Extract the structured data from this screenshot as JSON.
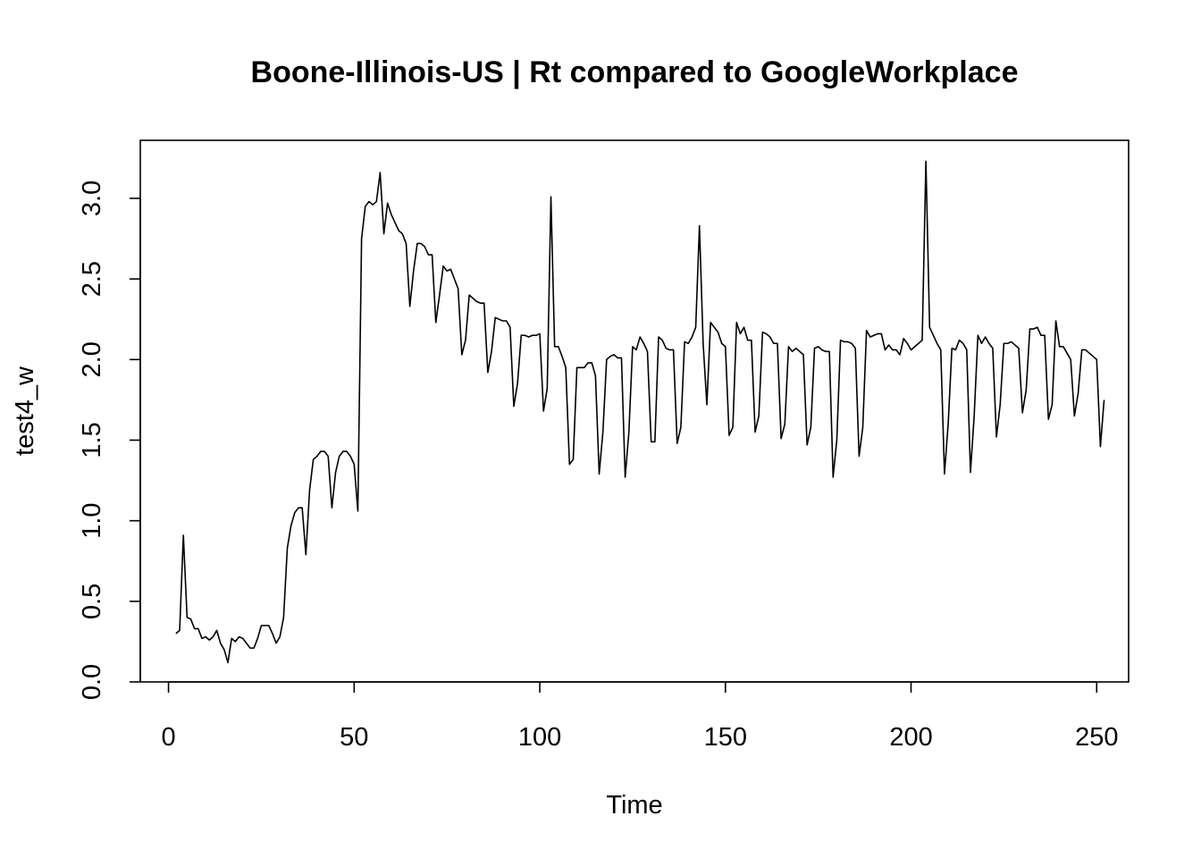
{
  "chart_data": {
    "type": "line",
    "title": "Boone-Illinois-US | Rt compared to GoogleWorkplace",
    "xlabel": "Time",
    "ylabel": "test4_w",
    "xlim": [
      -7.6,
      258.6
    ],
    "ylim": [
      0.0,
      3.36
    ],
    "x_ticks": [
      0,
      50,
      100,
      150,
      200,
      250
    ],
    "y_ticks": [
      0.0,
      0.5,
      1.0,
      1.5,
      2.0,
      2.5,
      3.0
    ],
    "x_tick_labels": [
      "0",
      "50",
      "100",
      "150",
      "200",
      "250"
    ],
    "y_tick_labels": [
      "0.0",
      "0.5",
      "1.0",
      "1.5",
      "2.0",
      "2.5",
      "3.0"
    ],
    "grid": false,
    "line_color": "#000000",
    "series": [
      {
        "x_start": 2,
        "values": [
          0.3,
          0.32,
          0.91,
          0.4,
          0.39,
          0.33,
          0.33,
          0.27,
          0.28,
          0.26,
          0.28,
          0.32,
          0.24,
          0.2,
          0.12,
          0.27,
          0.25,
          0.28,
          0.27,
          0.24,
          0.21,
          0.21,
          0.27,
          0.35,
          0.35,
          0.35,
          0.3,
          0.24,
          0.28,
          0.4,
          0.83,
          0.97,
          1.05,
          1.08,
          1.08,
          0.79,
          1.19,
          1.38,
          1.4,
          1.43,
          1.43,
          1.4,
          1.08,
          1.3,
          1.4,
          1.43,
          1.43,
          1.4,
          1.35,
          1.06,
          2.75,
          2.95,
          2.98,
          2.96,
          2.98,
          3.16,
          2.78,
          2.97,
          2.9,
          2.85,
          2.8,
          2.78,
          2.72,
          2.33,
          2.55,
          2.72,
          2.72,
          2.7,
          2.65,
          2.65,
          2.23,
          2.4,
          2.58,
          2.55,
          2.56,
          2.5,
          2.44,
          2.03,
          2.12,
          2.4,
          2.38,
          2.36,
          2.35,
          2.35,
          1.92,
          2.05,
          2.26,
          2.25,
          2.24,
          2.24,
          2.2,
          1.71,
          1.85,
          2.15,
          2.15,
          2.14,
          2.15,
          2.15,
          2.16,
          1.68,
          1.82,
          3.01,
          2.08,
          2.08,
          2.02,
          1.95,
          1.35,
          1.38,
          1.95,
          1.95,
          1.95,
          1.98,
          1.98,
          1.9,
          1.29,
          1.55,
          2.0,
          2.02,
          2.03,
          2.01,
          2.01,
          1.27,
          1.55,
          2.08,
          2.06,
          2.14,
          2.1,
          2.05,
          1.49,
          1.49,
          2.14,
          2.12,
          2.07,
          2.06,
          2.06,
          1.48,
          1.58,
          2.11,
          2.1,
          2.14,
          2.2,
          2.83,
          2.1,
          1.72,
          2.23,
          2.2,
          2.17,
          2.1,
          2.08,
          1.53,
          1.58,
          2.23,
          2.16,
          2.2,
          2.12,
          2.12,
          1.55,
          1.65,
          2.17,
          2.16,
          2.14,
          2.1,
          2.1,
          1.51,
          1.6,
          2.08,
          2.05,
          2.07,
          2.05,
          2.03,
          1.47,
          1.58,
          2.07,
          2.08,
          2.06,
          2.05,
          2.05,
          1.27,
          1.5,
          2.12,
          2.11,
          2.11,
          2.1,
          2.07,
          1.4,
          1.58,
          2.18,
          2.14,
          2.15,
          2.16,
          2.16,
          2.06,
          2.09,
          2.06,
          2.06,
          2.03,
          2.13,
          2.1,
          2.06,
          2.08,
          2.1,
          2.12,
          3.23,
          2.2,
          2.15,
          2.1,
          2.06,
          1.29,
          1.6,
          2.07,
          2.06,
          2.12,
          2.1,
          2.06,
          1.3,
          1.65,
          2.15,
          2.1,
          2.14,
          2.1,
          2.07,
          1.52,
          1.72,
          2.1,
          2.1,
          2.11,
          2.09,
          2.07,
          1.67,
          1.81,
          2.19,
          2.19,
          2.2,
          2.15,
          2.15,
          1.63,
          1.72,
          2.24,
          2.08,
          2.08,
          2.04,
          2.0,
          1.65,
          1.79,
          2.06,
          2.06,
          2.04,
          2.02,
          2.0,
          1.46,
          1.75
        ]
      }
    ]
  }
}
